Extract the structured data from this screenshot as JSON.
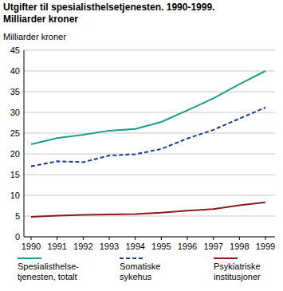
{
  "chart_data": {
    "type": "line",
    "title": "Utgifter til spesialisthelsetjenesten. 1990-1999.",
    "subtitle": "Milliarder kroner",
    "y_label": "Milliarder kroner",
    "categories": [
      "1990",
      "1991",
      "1992",
      "1993",
      "1994",
      "1995",
      "1996",
      "1997",
      "1998",
      "1999"
    ],
    "series": [
      {
        "name": "Spesialisthelse-\ntjenesten, totalt",
        "color": "#1a9e8c",
        "line_style": "solid",
        "values": [
          22.3,
          23.8,
          24.6,
          25.6,
          26.0,
          27.7,
          30.5,
          33.4,
          36.8,
          40.0
        ]
      },
      {
        "name": "Somatiske\nsykehus",
        "color": "#1f3b8c",
        "line_style": "dashed",
        "values": [
          17.0,
          18.2,
          18.0,
          19.6,
          19.9,
          21.2,
          23.7,
          25.8,
          28.5,
          31.2
        ]
      },
      {
        "name": "Psykiatriske\ninstitusjoner",
        "color": "#8b1a1a",
        "line_style": "solid",
        "values": [
          4.8,
          5.1,
          5.3,
          5.4,
          5.5,
          5.8,
          6.3,
          6.7,
          7.6,
          8.3
        ]
      }
    ],
    "ylim": [
      0,
      45
    ],
    "yticks": [
      0,
      5,
      10,
      15,
      20,
      25,
      30,
      35,
      40,
      45
    ],
    "grid": true,
    "legend": "bottom"
  }
}
